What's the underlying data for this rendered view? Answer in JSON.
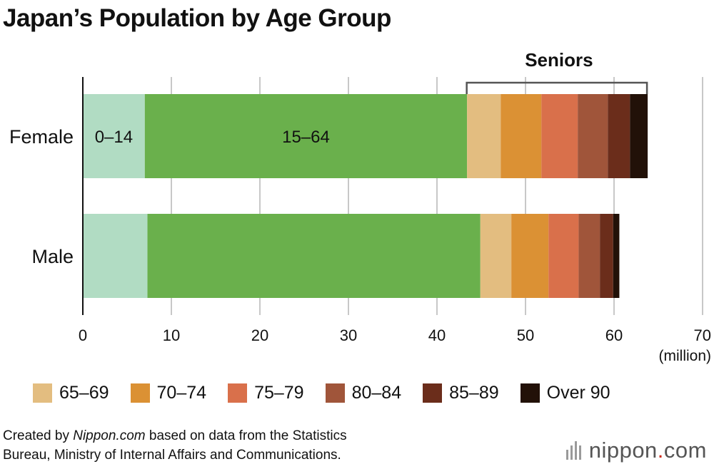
{
  "title": "Japan’s Population by Age Group",
  "bracket_label": "Seniors",
  "inbar_labels": [
    "0–14",
    "15–64"
  ],
  "unit": "(million)",
  "source_line1": "Created by ",
  "source_italic": "Nippon.com",
  "source_line1_rest": " based on data from the Statistics",
  "source_line2": "Bureau, Ministry of Internal Affairs and Communications.",
  "logo": {
    "name": "nippon",
    "dot": ".",
    "tld": "com"
  },
  "chart_data": {
    "type": "bar",
    "orientation": "horizontal",
    "stacked": true,
    "categories": [
      "Female",
      "Male"
    ],
    "xlim": [
      0,
      70
    ],
    "xticks": [
      0,
      10,
      20,
      30,
      40,
      50,
      60,
      70
    ],
    "grid": true,
    "series": [
      {
        "name": "0–14",
        "color": "#b1dcc3",
        "values": [
          7.0,
          7.3
        ]
      },
      {
        "name": "15–64",
        "color": "#6ab04c",
        "values": [
          36.4,
          37.6
        ]
      },
      {
        "name": "65–69",
        "color": "#e3bd80",
        "values": [
          3.8,
          3.5
        ]
      },
      {
        "name": "70–74",
        "color": "#db9134",
        "values": [
          4.6,
          4.2
        ]
      },
      {
        "name": "75–79",
        "color": "#d9704b",
        "values": [
          4.1,
          3.4
        ]
      },
      {
        "name": "80–84",
        "color": "#a0553a",
        "values": [
          3.4,
          2.4
        ]
      },
      {
        "name": "85–89",
        "color": "#6b2d1b",
        "values": [
          2.5,
          1.5
        ]
      },
      {
        "name": "Over 90",
        "color": "#221108",
        "values": [
          2.0,
          0.7
        ]
      }
    ],
    "legend_items": [
      "65–69",
      "70–74",
      "75–79",
      "80–84",
      "85–89",
      "Over 90"
    ],
    "legend_position": "bottom"
  }
}
